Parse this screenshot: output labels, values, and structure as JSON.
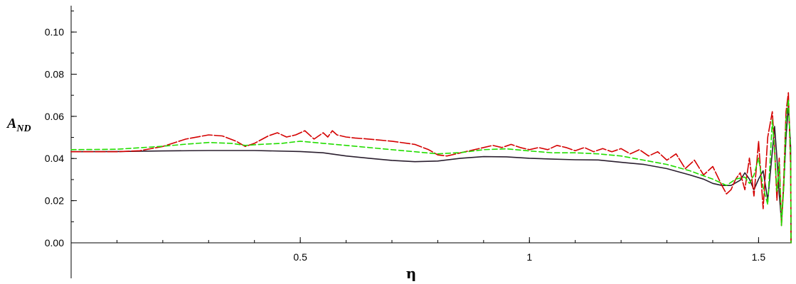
{
  "chart_data": {
    "type": "line",
    "title": "",
    "xlabel": "η",
    "ylabel": {
      "main": "A",
      "sub": "ND"
    },
    "xlim": [
      0.0,
      1.5708
    ],
    "ylim": [
      0.0,
      0.1125
    ],
    "x_ticks": [
      {
        "value": 0.5,
        "label": "0.5"
      },
      {
        "value": 1.0,
        "label": "1"
      },
      {
        "value": 1.5,
        "label": "1.5"
      }
    ],
    "x_minor_step": 0.1,
    "y_ticks": [
      {
        "value": 0.0,
        "label": "0.00"
      },
      {
        "value": 0.02,
        "label": "0.02"
      },
      {
        "value": 0.04,
        "label": "0.04"
      },
      {
        "value": 0.06,
        "label": "0.06"
      },
      {
        "value": 0.08,
        "label": "0.08"
      },
      {
        "value": 0.1,
        "label": "0.10"
      }
    ],
    "y_minor_step": 0.01,
    "grid": false,
    "series": [
      {
        "color": "#2a1e2e",
        "dash": "solid",
        "points": [
          [
            0.0,
            0.0432
          ],
          [
            0.1,
            0.0433
          ],
          [
            0.2,
            0.0436
          ],
          [
            0.3,
            0.0438
          ],
          [
            0.4,
            0.0438
          ],
          [
            0.5,
            0.0433
          ],
          [
            0.55,
            0.0427
          ],
          [
            0.6,
            0.0412
          ],
          [
            0.65,
            0.0401
          ],
          [
            0.7,
            0.0391
          ],
          [
            0.75,
            0.0385
          ],
          [
            0.8,
            0.0388
          ],
          [
            0.85,
            0.0401
          ],
          [
            0.9,
            0.0409
          ],
          [
            0.95,
            0.0408
          ],
          [
            1.0,
            0.0401
          ],
          [
            1.05,
            0.0397
          ],
          [
            1.1,
            0.0394
          ],
          [
            1.15,
            0.0393
          ],
          [
            1.2,
            0.0382
          ],
          [
            1.25,
            0.0372
          ],
          [
            1.3,
            0.0352
          ],
          [
            1.35,
            0.0322
          ],
          [
            1.38,
            0.0302
          ],
          [
            1.4,
            0.0282
          ],
          [
            1.42,
            0.0272
          ],
          [
            1.44,
            0.0272
          ],
          [
            1.46,
            0.0297
          ],
          [
            1.47,
            0.0332
          ],
          [
            1.48,
            0.0302
          ],
          [
            1.49,
            0.0252
          ],
          [
            1.5,
            0.0302
          ],
          [
            1.51,
            0.0342
          ],
          [
            1.52,
            0.0202
          ],
          [
            1.53,
            0.0432
          ],
          [
            1.535,
            0.0552
          ],
          [
            1.54,
            0.0402
          ],
          [
            1.545,
            0.0232
          ],
          [
            1.55,
            0.0102
          ],
          [
            1.555,
            0.0272
          ],
          [
            1.56,
            0.0502
          ],
          [
            1.565,
            0.0652
          ],
          [
            1.57,
            0.0452
          ],
          [
            1.5708,
            0.0
          ]
        ]
      },
      {
        "color": "#d40000",
        "dash": "long-dash",
        "points": [
          [
            0.0,
            0.0432
          ],
          [
            0.05,
            0.0432
          ],
          [
            0.1,
            0.0432
          ],
          [
            0.15,
            0.0437
          ],
          [
            0.2,
            0.0457
          ],
          [
            0.25,
            0.0492
          ],
          [
            0.3,
            0.0512
          ],
          [
            0.33,
            0.0507
          ],
          [
            0.36,
            0.0482
          ],
          [
            0.38,
            0.0457
          ],
          [
            0.4,
            0.0472
          ],
          [
            0.43,
            0.0507
          ],
          [
            0.45,
            0.0522
          ],
          [
            0.47,
            0.0502
          ],
          [
            0.49,
            0.0512
          ],
          [
            0.51,
            0.0532
          ],
          [
            0.53,
            0.0492
          ],
          [
            0.55,
            0.0522
          ],
          [
            0.56,
            0.0502
          ],
          [
            0.57,
            0.0532
          ],
          [
            0.58,
            0.0512
          ],
          [
            0.6,
            0.0502
          ],
          [
            0.62,
            0.0497
          ],
          [
            0.65,
            0.0492
          ],
          [
            0.7,
            0.0482
          ],
          [
            0.75,
            0.0467
          ],
          [
            0.78,
            0.0442
          ],
          [
            0.8,
            0.0417
          ],
          [
            0.82,
            0.0412
          ],
          [
            0.84,
            0.0422
          ],
          [
            0.86,
            0.0432
          ],
          [
            0.88,
            0.0442
          ],
          [
            0.9,
            0.0452
          ],
          [
            0.92,
            0.0462
          ],
          [
            0.94,
            0.0452
          ],
          [
            0.96,
            0.0467
          ],
          [
            0.98,
            0.0452
          ],
          [
            1.0,
            0.0442
          ],
          [
            1.02,
            0.0452
          ],
          [
            1.04,
            0.0442
          ],
          [
            1.06,
            0.0462
          ],
          [
            1.08,
            0.0452
          ],
          [
            1.1,
            0.0437
          ],
          [
            1.12,
            0.0452
          ],
          [
            1.14,
            0.0432
          ],
          [
            1.16,
            0.0447
          ],
          [
            1.18,
            0.0432
          ],
          [
            1.2,
            0.0447
          ],
          [
            1.22,
            0.0422
          ],
          [
            1.24,
            0.0442
          ],
          [
            1.26,
            0.0412
          ],
          [
            1.28,
            0.0432
          ],
          [
            1.3,
            0.0392
          ],
          [
            1.32,
            0.0422
          ],
          [
            1.34,
            0.0352
          ],
          [
            1.36,
            0.0392
          ],
          [
            1.38,
            0.0322
          ],
          [
            1.4,
            0.0362
          ],
          [
            1.42,
            0.0272
          ],
          [
            1.43,
            0.0232
          ],
          [
            1.44,
            0.0252
          ],
          [
            1.45,
            0.0302
          ],
          [
            1.46,
            0.0332
          ],
          [
            1.47,
            0.0252
          ],
          [
            1.48,
            0.0402
          ],
          [
            1.49,
            0.0222
          ],
          [
            1.5,
            0.0482
          ],
          [
            1.51,
            0.0162
          ],
          [
            1.52,
            0.0502
          ],
          [
            1.53,
            0.0622
          ],
          [
            1.535,
            0.0452
          ],
          [
            1.54,
            0.0202
          ],
          [
            1.545,
            0.0402
          ],
          [
            1.55,
            0.0082
          ],
          [
            1.555,
            0.0302
          ],
          [
            1.56,
            0.0622
          ],
          [
            1.565,
            0.0712
          ],
          [
            1.57,
            0.0352
          ],
          [
            1.5708,
            0.0
          ]
        ]
      },
      {
        "color": "#22dd00",
        "dash": "dash",
        "points": [
          [
            0.0,
            0.0442
          ],
          [
            0.1,
            0.0444
          ],
          [
            0.2,
            0.0458
          ],
          [
            0.25,
            0.0468
          ],
          [
            0.3,
            0.0476
          ],
          [
            0.35,
            0.0472
          ],
          [
            0.38,
            0.0462
          ],
          [
            0.42,
            0.0468
          ],
          [
            0.46,
            0.0472
          ],
          [
            0.5,
            0.0482
          ],
          [
            0.55,
            0.0472
          ],
          [
            0.6,
            0.0462
          ],
          [
            0.65,
            0.0452
          ],
          [
            0.7,
            0.0442
          ],
          [
            0.75,
            0.0432
          ],
          [
            0.8,
            0.0422
          ],
          [
            0.85,
            0.0428
          ],
          [
            0.9,
            0.0442
          ],
          [
            0.95,
            0.0446
          ],
          [
            1.0,
            0.0436
          ],
          [
            1.05,
            0.0427
          ],
          [
            1.1,
            0.0427
          ],
          [
            1.15,
            0.0422
          ],
          [
            1.2,
            0.0412
          ],
          [
            1.25,
            0.0392
          ],
          [
            1.3,
            0.0372
          ],
          [
            1.35,
            0.0342
          ],
          [
            1.4,
            0.0302
          ],
          [
            1.43,
            0.0272
          ],
          [
            1.45,
            0.0302
          ],
          [
            1.47,
            0.0312
          ],
          [
            1.48,
            0.0282
          ],
          [
            1.49,
            0.0322
          ],
          [
            1.5,
            0.0402
          ],
          [
            1.51,
            0.0262
          ],
          [
            1.52,
            0.0182
          ],
          [
            1.53,
            0.0582
          ],
          [
            1.535,
            0.0432
          ],
          [
            1.54,
            0.0242
          ],
          [
            1.545,
            0.0382
          ],
          [
            1.55,
            0.0082
          ],
          [
            1.555,
            0.0262
          ],
          [
            1.56,
            0.0582
          ],
          [
            1.565,
            0.0682
          ],
          [
            1.57,
            0.0402
          ],
          [
            1.5708,
            0.0
          ]
        ]
      }
    ]
  }
}
